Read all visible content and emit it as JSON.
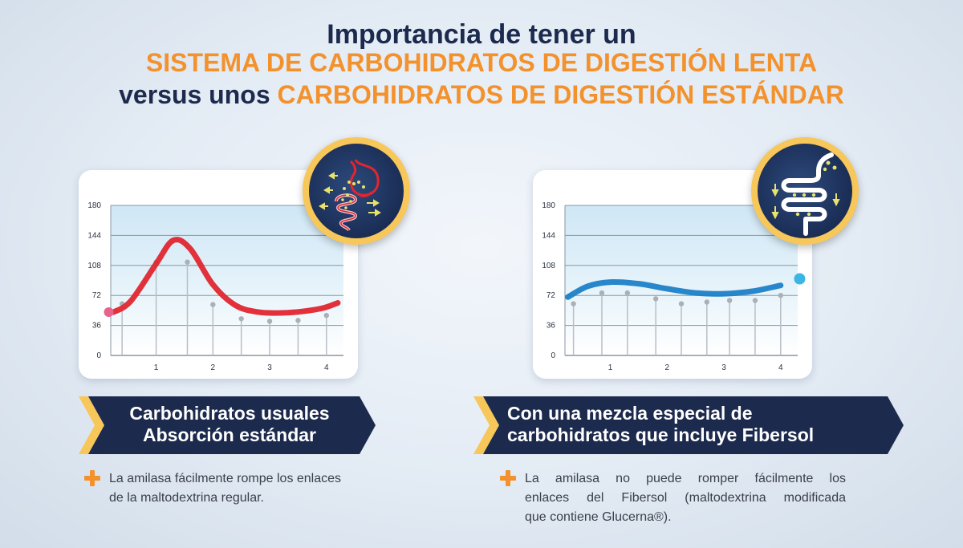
{
  "header": {
    "line1": "Importancia de tener un",
    "line2": "SISTEMA DE CARBOHIDRATOS DE DIGESTIÓN LENTA",
    "line3_prefix": "versus unos",
    "line3_highlight": "CARBOHIDRATOS DE DIGESTIÓN ESTÁNDAR"
  },
  "colors": {
    "navy": "#1c2a4e",
    "orange": "#f3922d",
    "red_curve": "#e0262f",
    "blue_curve": "#1d7fc8",
    "gold": "#f7c75a"
  },
  "icons": {
    "left_badge": "stomach-intestine-icon",
    "right_badge": "intestine-icon",
    "bullet": "plus-icon"
  },
  "chart_data": [
    {
      "type": "line",
      "ylim": [
        0,
        180
      ],
      "yticks": [
        "0",
        "36",
        "72",
        "108",
        "144",
        "180"
      ],
      "xlim": [
        0.2,
        4.3
      ],
      "xticks": [
        "1",
        "2",
        "3",
        "4"
      ],
      "grid": true,
      "series": [
        {
          "color": "#e0262f",
          "x": [
            0.25,
            0.55,
            1.0,
            1.3,
            1.6,
            2.0,
            2.4,
            2.8,
            3.2,
            3.6,
            3.95,
            4.2
          ],
          "y": [
            52,
            65,
            110,
            138,
            128,
            85,
            60,
            52,
            51,
            53,
            57,
            63
          ]
        }
      ],
      "stems": {
        "x": [
          0.4,
          1.0,
          1.55,
          2.0,
          2.5,
          3.0,
          3.5,
          4.0
        ],
        "y": [
          62,
          112,
          112,
          61,
          44,
          41,
          42,
          48
        ]
      },
      "start_marker": {
        "x": 0.25,
        "y": 52,
        "color": "#e6638c"
      }
    },
    {
      "type": "line",
      "ylim": [
        0,
        180
      ],
      "yticks": [
        "0",
        "36",
        "72",
        "108",
        "144",
        "180"
      ],
      "xlim": [
        0.2,
        4.3
      ],
      "xticks": [
        "1",
        "2",
        "3",
        "4"
      ],
      "grid": true,
      "series": [
        {
          "color": "#1d7fc8",
          "x": [
            0.25,
            0.6,
            1.0,
            1.5,
            2.0,
            2.5,
            3.0,
            3.5,
            4.0
          ],
          "y": [
            70,
            83,
            88,
            86,
            80,
            75,
            74,
            77,
            84
          ]
        }
      ],
      "stems": {
        "x": [
          0.35,
          0.85,
          1.3,
          1.8,
          2.25,
          2.7,
          3.1,
          3.55,
          4.0
        ],
        "y": [
          62,
          75,
          75,
          68,
          62,
          64,
          66,
          66,
          72
        ]
      },
      "end_marker": {
        "x": 4.25,
        "y": 90,
        "color": "#3ab5e6"
      }
    }
  ],
  "left_panel": {
    "banner_line1": "Carbohidratos usuales",
    "banner_line2": "Absorción estándar",
    "desc_line1": "La amilasa fácilmente rompe los enlaces",
    "desc_line2": "de la maltodextrina regular."
  },
  "right_panel": {
    "banner_line1": "Con una mezcla especial de",
    "banner_line2": "carbohidratos que incluye Fibersol",
    "desc_line1": "La amilasa no puede romper fácilmente los",
    "desc_line2": "enlaces del Fibersol (maltodextrina modificada",
    "desc_line3": "que contiene Glucerna®)."
  }
}
